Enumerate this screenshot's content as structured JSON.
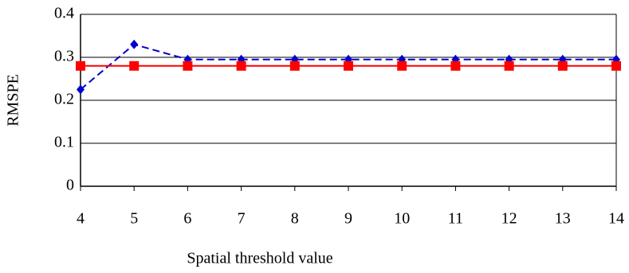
{
  "chart_data": {
    "type": "line",
    "x_label": "Spatial threshold value",
    "y_label": "RMSPE",
    "x": [
      4,
      5,
      6,
      7,
      8,
      9,
      10,
      11,
      12,
      13,
      14
    ],
    "series": [
      {
        "color": "#0000cc",
        "dashed": true,
        "marker": "diamond",
        "values": [
          0.225,
          0.33,
          0.295,
          0.295,
          0.295,
          0.295,
          0.295,
          0.295,
          0.295,
          0.295,
          0.295
        ]
      },
      {
        "color": "#ff0000",
        "dashed": false,
        "marker": "square",
        "values": [
          0.28,
          0.28,
          0.28,
          0.28,
          0.28,
          0.28,
          0.28,
          0.28,
          0.28,
          0.28,
          0.28
        ]
      }
    ],
    "xlim": [
      4,
      14
    ],
    "xticks": [
      4,
      5,
      6,
      7,
      8,
      9,
      10,
      11,
      12,
      13,
      14
    ],
    "ylim": [
      0,
      0.4
    ],
    "yticks": [
      0,
      0.1,
      0.2,
      0.3,
      0.4
    ],
    "grid": true
  }
}
